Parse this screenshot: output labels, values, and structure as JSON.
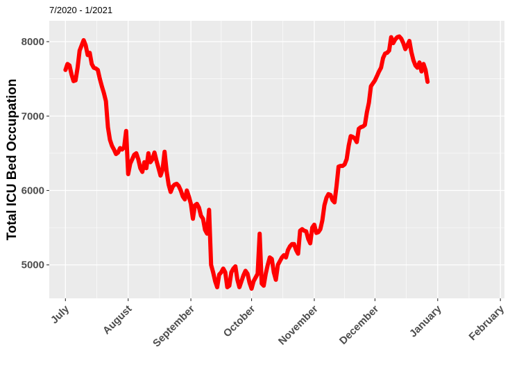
{
  "chart_data": {
    "type": "line",
    "subtitle": "7/2020 - 1/2021",
    "title": "",
    "xlabel": "",
    "ylabel": "Total ICU Bed Occupation",
    "ylim": [
      4550,
      8280
    ],
    "xlim": [
      -8,
      217
    ],
    "grid": true,
    "background": "#ebebeb",
    "line_color": "#ff0000",
    "x_ticks": [
      {
        "label": "July",
        "day": 0
      },
      {
        "label": "August",
        "day": 31
      },
      {
        "label": "September",
        "day": 62
      },
      {
        "label": "October",
        "day": 92
      },
      {
        "label": "November",
        "day": 123
      },
      {
        "label": "December",
        "day": 153
      },
      {
        "label": "January",
        "day": 184
      },
      {
        "label": "February",
        "day": 215
      }
    ],
    "y_ticks": [
      5000,
      6000,
      7000,
      8000
    ],
    "series": [
      {
        "values": [
          [
            0,
            7620
          ],
          [
            1,
            7700
          ],
          [
            2,
            7680
          ],
          [
            3,
            7560
          ],
          [
            4,
            7470
          ],
          [
            5,
            7480
          ],
          [
            6,
            7650
          ],
          [
            7,
            7880
          ],
          [
            8,
            7950
          ],
          [
            9,
            8020
          ],
          [
            10,
            7950
          ],
          [
            11,
            7820
          ],
          [
            12,
            7850
          ],
          [
            13,
            7700
          ],
          [
            14,
            7650
          ],
          [
            15,
            7640
          ],
          [
            16,
            7620
          ],
          [
            17,
            7500
          ],
          [
            18,
            7400
          ],
          [
            19,
            7310
          ],
          [
            20,
            7200
          ],
          [
            21,
            6850
          ],
          [
            22,
            6680
          ],
          [
            23,
            6600
          ],
          [
            24,
            6550
          ],
          [
            25,
            6490
          ],
          [
            26,
            6510
          ],
          [
            27,
            6570
          ],
          [
            28,
            6550
          ],
          [
            29,
            6580
          ],
          [
            30,
            6800
          ],
          [
            31,
            6220
          ],
          [
            32,
            6360
          ],
          [
            33,
            6420
          ],
          [
            34,
            6480
          ],
          [
            35,
            6500
          ],
          [
            36,
            6420
          ],
          [
            37,
            6300
          ],
          [
            38,
            6250
          ],
          [
            39,
            6380
          ],
          [
            40,
            6300
          ],
          [
            41,
            6500
          ],
          [
            42,
            6380
          ],
          [
            43,
            6420
          ],
          [
            44,
            6510
          ],
          [
            45,
            6400
          ],
          [
            46,
            6300
          ],
          [
            47,
            6200
          ],
          [
            48,
            6280
          ],
          [
            49,
            6520
          ],
          [
            50,
            6260
          ],
          [
            51,
            6080
          ],
          [
            52,
            5980
          ],
          [
            53,
            6050
          ],
          [
            54,
            6080
          ],
          [
            55,
            6090
          ],
          [
            56,
            6060
          ],
          [
            57,
            6000
          ],
          [
            58,
            5920
          ],
          [
            59,
            5880
          ],
          [
            60,
            6000
          ],
          [
            61,
            5920
          ],
          [
            62,
            5820
          ],
          [
            63,
            5620
          ],
          [
            64,
            5800
          ],
          [
            65,
            5820
          ],
          [
            66,
            5770
          ],
          [
            67,
            5660
          ],
          [
            68,
            5620
          ],
          [
            69,
            5470
          ],
          [
            70,
            5420
          ],
          [
            71,
            5740
          ],
          [
            72,
            5000
          ],
          [
            73,
            4900
          ],
          [
            74,
            4780
          ],
          [
            75,
            4700
          ],
          [
            76,
            4870
          ],
          [
            77,
            4900
          ],
          [
            78,
            4950
          ],
          [
            79,
            4900
          ],
          [
            80,
            4700
          ],
          [
            81,
            4720
          ],
          [
            82,
            4900
          ],
          [
            83,
            4950
          ],
          [
            84,
            4980
          ],
          [
            85,
            4800
          ],
          [
            86,
            4700
          ],
          [
            87,
            4780
          ],
          [
            88,
            4860
          ],
          [
            89,
            4920
          ],
          [
            90,
            4880
          ],
          [
            91,
            4760
          ],
          [
            92,
            4680
          ],
          [
            93,
            4780
          ],
          [
            94,
            4830
          ],
          [
            95,
            4880
          ],
          [
            96,
            5420
          ],
          [
            97,
            4750
          ],
          [
            98,
            4720
          ],
          [
            99,
            4880
          ],
          [
            100,
            5000
          ],
          [
            101,
            5100
          ],
          [
            102,
            5080
          ],
          [
            103,
            4900
          ],
          [
            104,
            4800
          ],
          [
            105,
            5000
          ],
          [
            106,
            5050
          ],
          [
            107,
            5100
          ],
          [
            108,
            5130
          ],
          [
            109,
            5100
          ],
          [
            110,
            5200
          ],
          [
            111,
            5250
          ],
          [
            112,
            5280
          ],
          [
            113,
            5280
          ],
          [
            114,
            5200
          ],
          [
            115,
            5150
          ],
          [
            116,
            5460
          ],
          [
            117,
            5480
          ],
          [
            118,
            5460
          ],
          [
            119,
            5450
          ],
          [
            120,
            5350
          ],
          [
            121,
            5290
          ],
          [
            122,
            5500
          ],
          [
            123,
            5540
          ],
          [
            124,
            5430
          ],
          [
            125,
            5440
          ],
          [
            126,
            5480
          ],
          [
            127,
            5600
          ],
          [
            128,
            5800
          ],
          [
            129,
            5900
          ],
          [
            130,
            5950
          ],
          [
            131,
            5940
          ],
          [
            132,
            5870
          ],
          [
            133,
            5840
          ],
          [
            134,
            6060
          ],
          [
            135,
            6320
          ],
          [
            136,
            6330
          ],
          [
            137,
            6330
          ],
          [
            138,
            6350
          ],
          [
            139,
            6420
          ],
          [
            140,
            6600
          ],
          [
            141,
            6730
          ],
          [
            142,
            6720
          ],
          [
            143,
            6700
          ],
          [
            144,
            6650
          ],
          [
            145,
            6830
          ],
          [
            146,
            6850
          ],
          [
            147,
            6860
          ],
          [
            148,
            6880
          ],
          [
            149,
            7050
          ],
          [
            150,
            7180
          ],
          [
            151,
            7400
          ],
          [
            152,
            7440
          ],
          [
            153,
            7480
          ],
          [
            154,
            7540
          ],
          [
            155,
            7600
          ],
          [
            156,
            7650
          ],
          [
            157,
            7780
          ],
          [
            158,
            7840
          ],
          [
            159,
            7850
          ],
          [
            160,
            7880
          ],
          [
            161,
            8060
          ],
          [
            162,
            7980
          ],
          [
            163,
            8030
          ],
          [
            164,
            8060
          ],
          [
            165,
            8070
          ],
          [
            166,
            8040
          ],
          [
            167,
            7980
          ],
          [
            168,
            7900
          ],
          [
            169,
            7950
          ],
          [
            170,
            8010
          ],
          [
            171,
            7860
          ],
          [
            172,
            7750
          ],
          [
            173,
            7680
          ],
          [
            174,
            7650
          ],
          [
            175,
            7720
          ],
          [
            176,
            7600
          ],
          [
            177,
            7700
          ],
          [
            178,
            7620
          ],
          [
            179,
            7460
          ]
        ]
      }
    ]
  }
}
